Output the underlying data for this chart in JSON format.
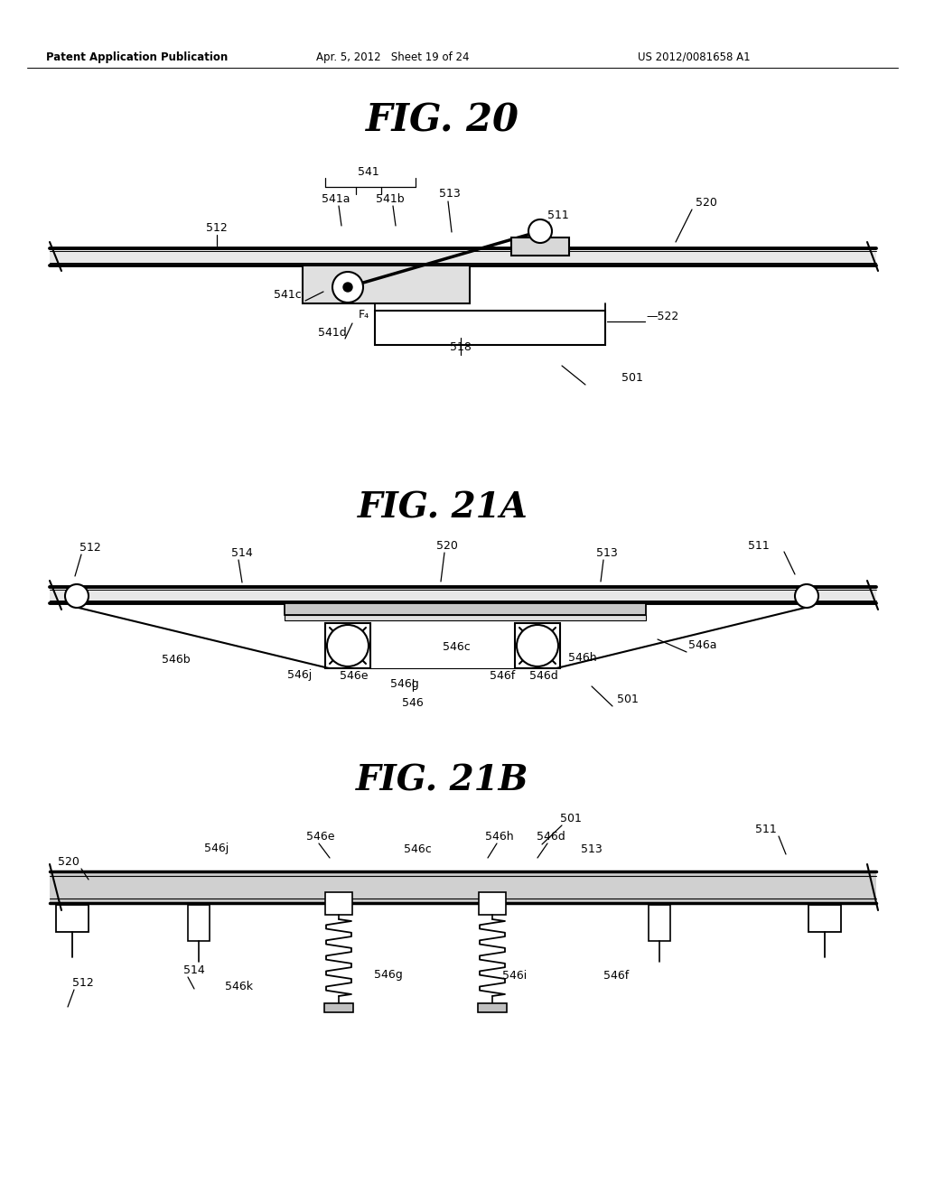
{
  "bg_color": "#ffffff",
  "header_left": "Patent Application Publication",
  "header_middle": "Apr. 5, 2012   Sheet 19 of 24",
  "header_right": "US 2012/0081658 A1",
  "fig20_title": "FIG. 20",
  "fig21a_title": "FIG. 21A",
  "fig21b_title": "FIG. 21B"
}
